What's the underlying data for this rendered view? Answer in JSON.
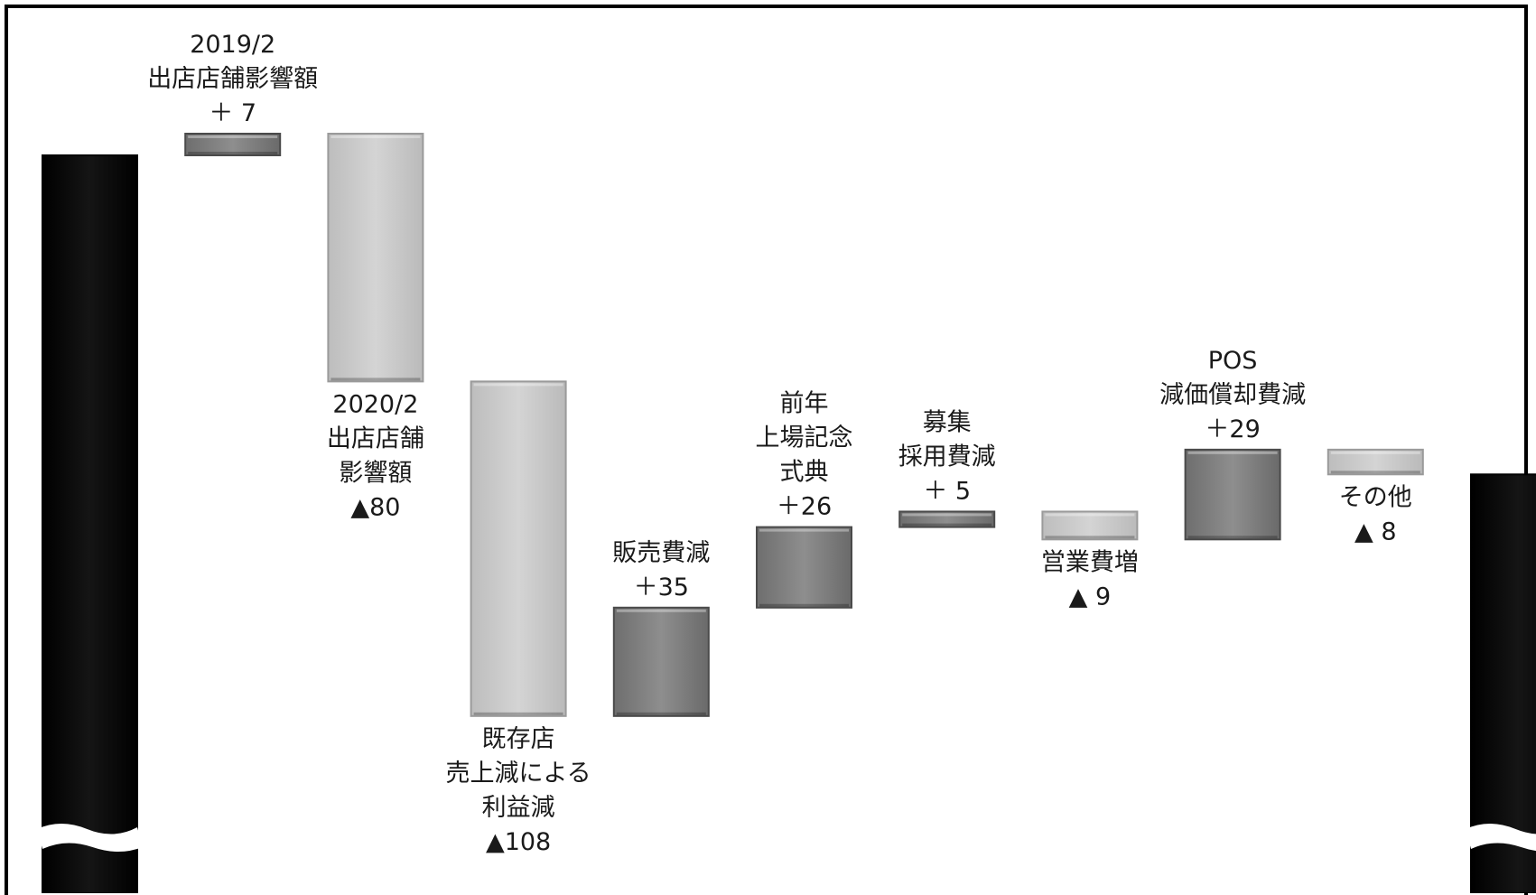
{
  "chart_data": {
    "type": "waterfall",
    "axis_visible": false,
    "gridlines": false,
    "legend": "none",
    "colors": {
      "total": "#050505",
      "increase": "#8c8c8c",
      "decrease": "#cfcfcf"
    },
    "bars": [
      {
        "kind": "total",
        "value": null,
        "label_lines": []
      },
      {
        "kind": "increase",
        "value": 7,
        "label_lines": [
          "2019/2",
          "出店店舗影響額",
          "＋ 7"
        ]
      },
      {
        "kind": "decrease",
        "value": -80,
        "label_lines": [
          "2020/2",
          "出店店舗",
          "影響額",
          "▲80"
        ]
      },
      {
        "kind": "decrease",
        "value": -108,
        "label_lines": [
          "既存店",
          "売上減による",
          "利益減",
          "▲108"
        ]
      },
      {
        "kind": "increase",
        "value": 35,
        "label_lines": [
          "販売費減",
          "＋35"
        ]
      },
      {
        "kind": "increase",
        "value": 26,
        "label_lines": [
          "前年",
          "上場記念",
          "式典",
          "＋26"
        ]
      },
      {
        "kind": "increase",
        "value": 5,
        "label_lines": [
          "募集",
          "採用費減",
          "＋ 5"
        ]
      },
      {
        "kind": "decrease",
        "value": -9,
        "label_lines": [
          "営業費増",
          "▲ 9"
        ]
      },
      {
        "kind": "increase",
        "value": 29,
        "label_lines": [
          "POS",
          "減価償却費減",
          "＋29"
        ]
      },
      {
        "kind": "decrease",
        "value": -8,
        "label_lines": [
          "その他",
          "▲ 8"
        ]
      },
      {
        "kind": "total",
        "value": null,
        "label_lines": []
      }
    ]
  }
}
